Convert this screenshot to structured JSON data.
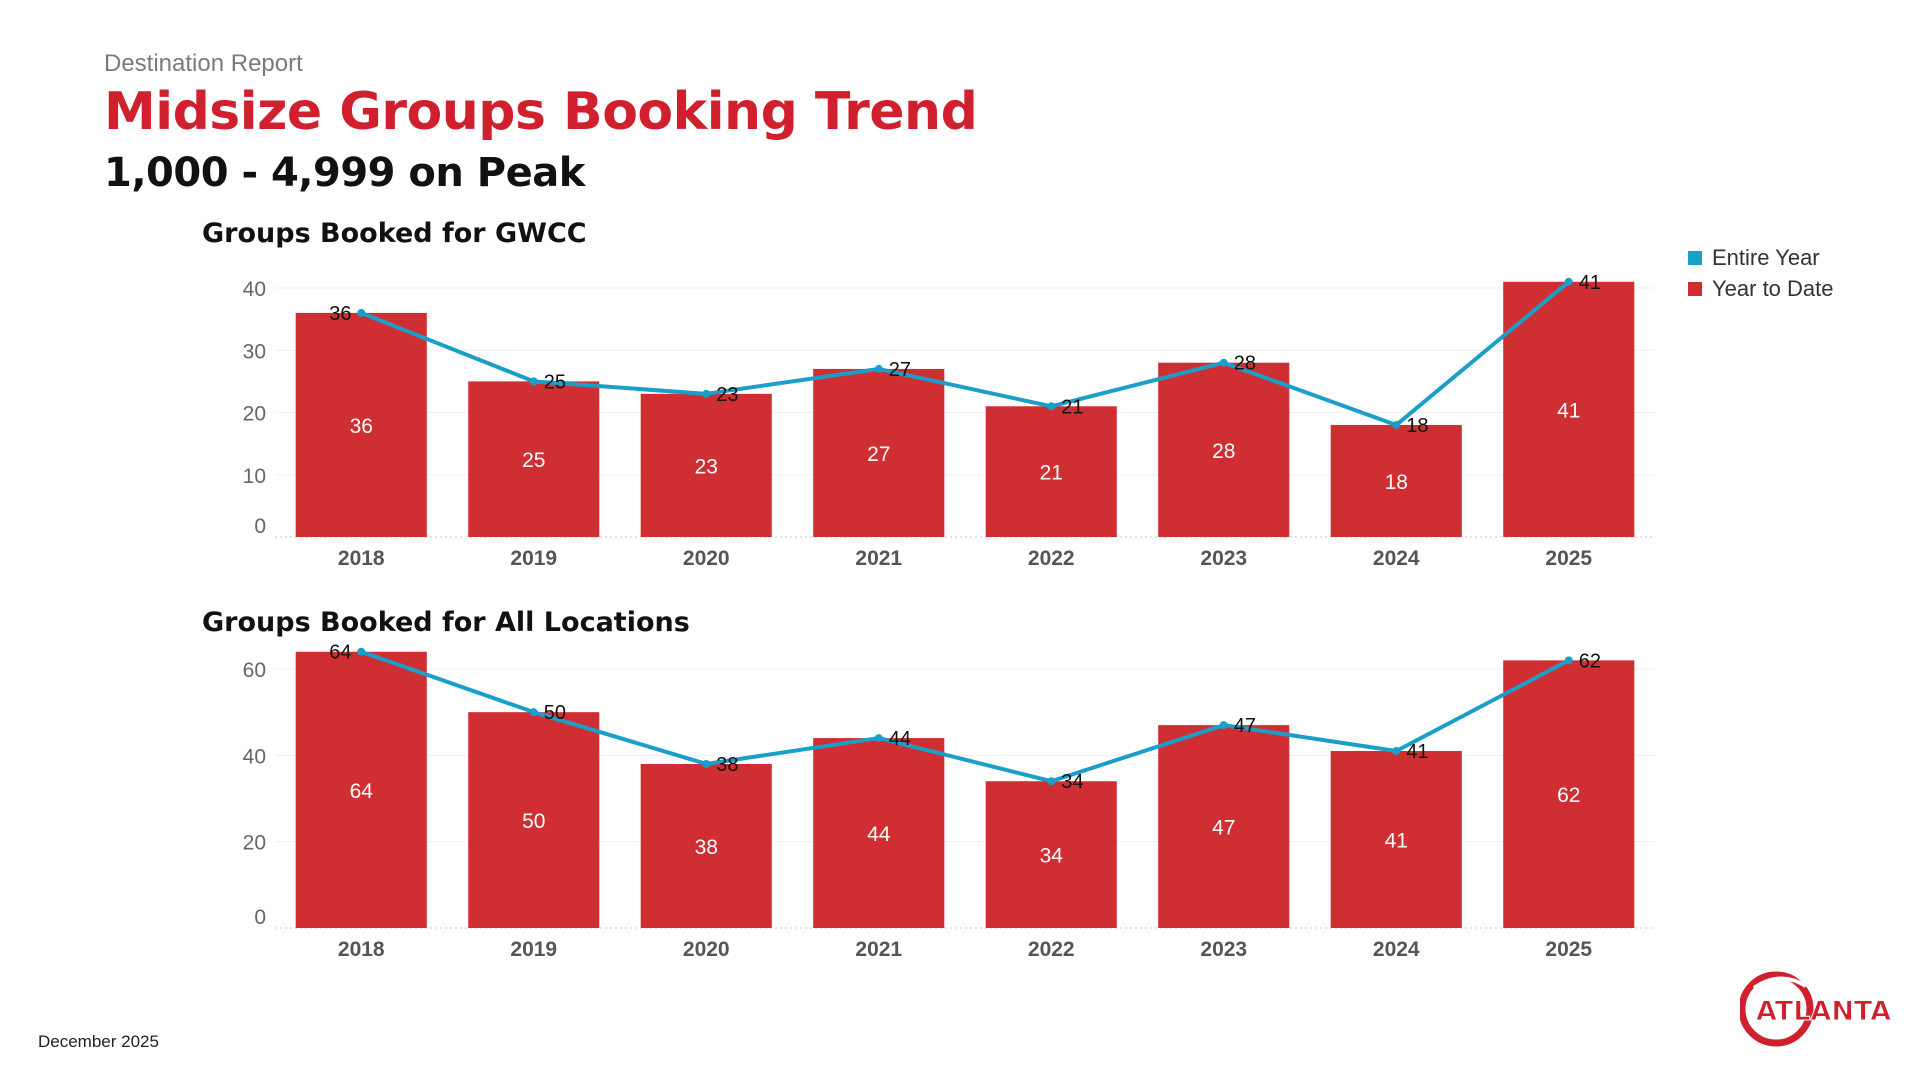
{
  "header": {
    "report_label": "Destination Report",
    "title": "Midsize Groups Booking Trend",
    "subtitle": "1,000 - 4,999 on Peak"
  },
  "legend": {
    "items": [
      {
        "label": "Entire Year",
        "color": "#1a9fc9"
      },
      {
        "label": "Year to Date",
        "color": "#cf2f33"
      }
    ]
  },
  "footer": {
    "date": "December 2025"
  },
  "logo": {
    "text": "ATLANTA"
  },
  "colors": {
    "bar": "#cf2f33",
    "line": "#1a9fc9",
    "title_red": "#d0202e"
  },
  "chart_data": [
    {
      "type": "bar",
      "title": "Groups Booked for GWCC",
      "categories": [
        "2018",
        "2019",
        "2020",
        "2021",
        "2022",
        "2023",
        "2024",
        "2025"
      ],
      "ylim": [
        0,
        40
      ],
      "yticks": [
        0,
        10,
        20,
        30,
        40
      ],
      "series": [
        {
          "name": "Year to Date",
          "kind": "bar",
          "values": [
            36,
            25,
            23,
            27,
            21,
            28,
            18,
            41
          ]
        },
        {
          "name": "Entire Year",
          "kind": "line",
          "values": [
            36,
            25,
            23,
            27,
            21,
            28,
            18,
            41
          ]
        }
      ]
    },
    {
      "type": "bar",
      "title": "Groups Booked for All Locations",
      "categories": [
        "2018",
        "2019",
        "2020",
        "2021",
        "2022",
        "2023",
        "2024",
        "2025"
      ],
      "ylim": [
        0,
        60
      ],
      "yticks": [
        0,
        20,
        40,
        60
      ],
      "series": [
        {
          "name": "Year to Date",
          "kind": "bar",
          "values": [
            64,
            50,
            38,
            44,
            34,
            47,
            41,
            62
          ]
        },
        {
          "name": "Entire Year",
          "kind": "line",
          "values": [
            64,
            50,
            38,
            44,
            34,
            47,
            41,
            62
          ]
        }
      ]
    }
  ]
}
